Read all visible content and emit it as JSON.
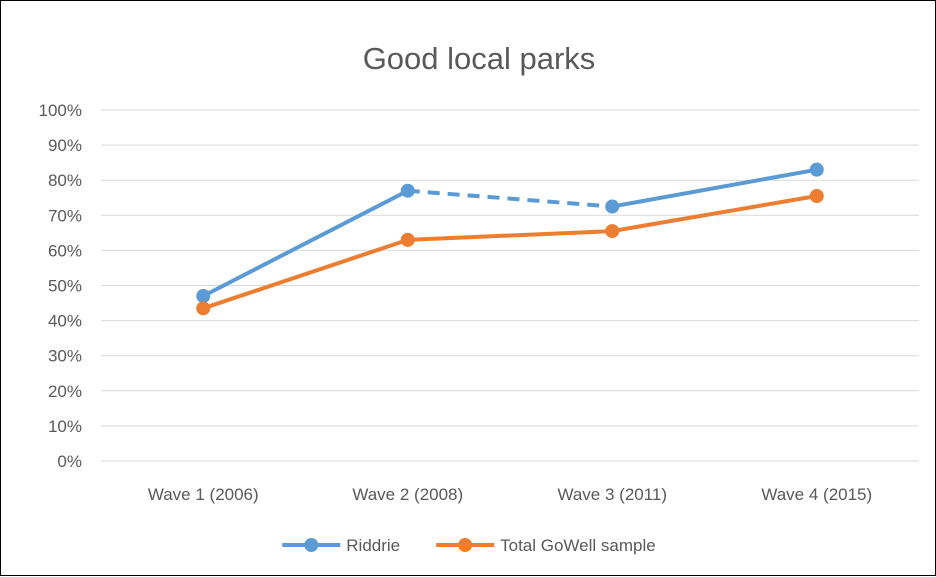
{
  "chart_data": {
    "type": "line",
    "title": "Good local parks",
    "categories": [
      "Wave 1 (2006)",
      "Wave 2 (2008)",
      "Wave 3 (2011)",
      "Wave 4 (2015)"
    ],
    "y_ticks": [
      "0%",
      "10%",
      "20%",
      "30%",
      "40%",
      "50%",
      "60%",
      "70%",
      "80%",
      "90%",
      "100%"
    ],
    "ylim": [
      0,
      100
    ],
    "y_format": "percent",
    "grid": true,
    "legend_position": "bottom",
    "series": [
      {
        "name": "Riddrie",
        "values": [
          47,
          77,
          72.5,
          83
        ],
        "color": "#5B9BD5",
        "dashed_segments": [
          1
        ]
      },
      {
        "name": "Total GoWell sample",
        "values": [
          43.5,
          63,
          65.5,
          75.5
        ],
        "color": "#ED7D31",
        "dashed_segments": []
      }
    ]
  }
}
